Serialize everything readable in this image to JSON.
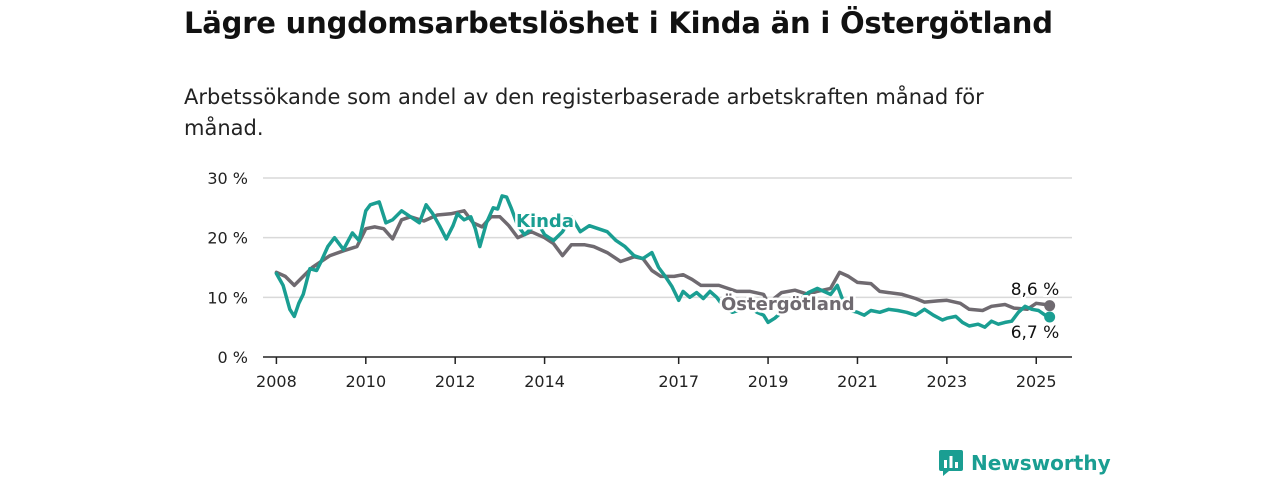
{
  "title": "Lägre ungdomsarbetslöshet i Kinda än i Östergötland",
  "subtitle": "Arbetssökande som andel av den registerbaserade arbetskraften månad för månad.",
  "brand": {
    "name": "Newsworthy",
    "icon": "newsworthy-logo-icon"
  },
  "colors": {
    "kinda": "#1a9e92",
    "ostergotland": "#6f6a70",
    "grid": "#d9d9d9",
    "axis": "#222222"
  },
  "chart_data": {
    "type": "line",
    "x_unit": "year",
    "xlim": [
      2007.7,
      2025.8
    ],
    "ylim": [
      0,
      30
    ],
    "y_ticks": [
      0,
      10,
      20,
      30
    ],
    "y_tick_labels": [
      "0 %",
      "10 %",
      "20 %",
      "30 %"
    ],
    "x_ticks": [
      2008,
      2010,
      2012,
      2014,
      2017,
      2019,
      2021,
      2023,
      2025
    ],
    "x_tick_labels": [
      "2008",
      "2010",
      "2012",
      "2014",
      "2017",
      "2019",
      "2021",
      "2023",
      "2025"
    ],
    "grid": true,
    "series": [
      {
        "name": "Östergötland",
        "end_label": "8,6 %",
        "points": [
          [
            2008.0,
            14.2
          ],
          [
            2008.2,
            13.5
          ],
          [
            2008.4,
            12.0
          ],
          [
            2008.6,
            13.5
          ],
          [
            2008.8,
            15.0
          ],
          [
            2009.0,
            16.0
          ],
          [
            2009.2,
            17.0
          ],
          [
            2009.5,
            17.8
          ],
          [
            2009.8,
            18.5
          ],
          [
            2010.0,
            21.5
          ],
          [
            2010.2,
            21.8
          ],
          [
            2010.4,
            21.5
          ],
          [
            2010.6,
            19.8
          ],
          [
            2010.8,
            23.0
          ],
          [
            2011.0,
            23.5
          ],
          [
            2011.3,
            22.8
          ],
          [
            2011.6,
            23.8
          ],
          [
            2011.9,
            24.0
          ],
          [
            2012.2,
            24.5
          ],
          [
            2012.4,
            22.5
          ],
          [
            2012.6,
            21.8
          ],
          [
            2012.8,
            23.5
          ],
          [
            2013.0,
            23.5
          ],
          [
            2013.2,
            22.0
          ],
          [
            2013.4,
            20.0
          ],
          [
            2013.7,
            21.0
          ],
          [
            2014.0,
            20.0
          ],
          [
            2014.2,
            19.0
          ],
          [
            2014.4,
            17.0
          ],
          [
            2014.6,
            18.8
          ],
          [
            2014.9,
            18.8
          ],
          [
            2015.1,
            18.5
          ],
          [
            2015.4,
            17.5
          ],
          [
            2015.7,
            16.0
          ],
          [
            2016.0,
            16.8
          ],
          [
            2016.2,
            16.5
          ],
          [
            2016.4,
            14.5
          ],
          [
            2016.6,
            13.5
          ],
          [
            2016.9,
            13.5
          ],
          [
            2017.1,
            13.8
          ],
          [
            2017.3,
            13.0
          ],
          [
            2017.5,
            12.0
          ],
          [
            2017.7,
            12.0
          ],
          [
            2017.9,
            12.0
          ],
          [
            2018.1,
            11.5
          ],
          [
            2018.3,
            11.0
          ],
          [
            2018.6,
            11.0
          ],
          [
            2018.9,
            10.5
          ],
          [
            2019.0,
            9.0
          ],
          [
            2019.3,
            10.8
          ],
          [
            2019.6,
            11.2
          ],
          [
            2019.9,
            10.5
          ],
          [
            2020.1,
            11.0
          ],
          [
            2020.4,
            11.5
          ],
          [
            2020.6,
            14.2
          ],
          [
            2020.8,
            13.5
          ],
          [
            2021.0,
            12.5
          ],
          [
            2021.3,
            12.3
          ],
          [
            2021.5,
            11.0
          ],
          [
            2021.7,
            10.8
          ],
          [
            2022.0,
            10.5
          ],
          [
            2022.3,
            9.8
          ],
          [
            2022.5,
            9.2
          ],
          [
            2022.8,
            9.4
          ],
          [
            2023.0,
            9.5
          ],
          [
            2023.3,
            9.0
          ],
          [
            2023.5,
            8.0
          ],
          [
            2023.8,
            7.8
          ],
          [
            2024.0,
            8.5
          ],
          [
            2024.3,
            8.8
          ],
          [
            2024.5,
            8.2
          ],
          [
            2024.8,
            8.0
          ],
          [
            2025.0,
            9.0
          ],
          [
            2025.2,
            8.8
          ],
          [
            2025.3,
            8.6
          ]
        ]
      },
      {
        "name": "Kinda",
        "end_label": "6,7 %",
        "points": [
          [
            2008.0,
            14.0
          ],
          [
            2008.15,
            12.0
          ],
          [
            2008.3,
            8.0
          ],
          [
            2008.4,
            6.8
          ],
          [
            2008.5,
            9.0
          ],
          [
            2008.6,
            10.5
          ],
          [
            2008.75,
            14.8
          ],
          [
            2008.9,
            14.5
          ],
          [
            2009.0,
            16.0
          ],
          [
            2009.15,
            18.5
          ],
          [
            2009.3,
            20.0
          ],
          [
            2009.5,
            18.0
          ],
          [
            2009.7,
            20.8
          ],
          [
            2009.85,
            19.5
          ],
          [
            2010.0,
            24.5
          ],
          [
            2010.1,
            25.5
          ],
          [
            2010.3,
            26.0
          ],
          [
            2010.45,
            22.5
          ],
          [
            2010.6,
            23.0
          ],
          [
            2010.8,
            24.5
          ],
          [
            2011.0,
            23.5
          ],
          [
            2011.2,
            22.5
          ],
          [
            2011.35,
            25.5
          ],
          [
            2011.5,
            24.0
          ],
          [
            2011.65,
            22.0
          ],
          [
            2011.8,
            19.8
          ],
          [
            2011.95,
            22.0
          ],
          [
            2012.05,
            24.0
          ],
          [
            2012.2,
            23.0
          ],
          [
            2012.35,
            23.5
          ],
          [
            2012.45,
            21.5
          ],
          [
            2012.55,
            18.5
          ],
          [
            2012.7,
            22.5
          ],
          [
            2012.85,
            25.0
          ],
          [
            2012.95,
            24.8
          ],
          [
            2013.05,
            27.0
          ],
          [
            2013.15,
            26.8
          ],
          [
            2013.25,
            25.0
          ],
          [
            2013.4,
            22.0
          ],
          [
            2013.55,
            20.5
          ],
          [
            2013.7,
            21.5
          ],
          [
            2013.85,
            22.5
          ],
          [
            2014.0,
            20.5
          ],
          [
            2014.2,
            19.5
          ],
          [
            2014.4,
            21.0
          ],
          [
            2014.6,
            23.5
          ],
          [
            2014.8,
            21.0
          ],
          [
            2015.0,
            22.0
          ],
          [
            2015.2,
            21.5
          ],
          [
            2015.4,
            21.0
          ],
          [
            2015.6,
            19.5
          ],
          [
            2015.8,
            18.5
          ],
          [
            2016.0,
            17.0
          ],
          [
            2016.2,
            16.5
          ],
          [
            2016.4,
            17.5
          ],
          [
            2016.55,
            15.0
          ],
          [
            2016.7,
            13.5
          ],
          [
            2016.85,
            11.8
          ],
          [
            2017.0,
            9.5
          ],
          [
            2017.1,
            11.0
          ],
          [
            2017.25,
            10.0
          ],
          [
            2017.4,
            10.8
          ],
          [
            2017.55,
            9.8
          ],
          [
            2017.7,
            11.0
          ],
          [
            2017.85,
            10.0
          ],
          [
            2018.0,
            8.5
          ],
          [
            2018.2,
            7.5
          ],
          [
            2018.4,
            8.0
          ],
          [
            2018.6,
            8.5
          ],
          [
            2018.75,
            7.5
          ],
          [
            2018.9,
            7.0
          ],
          [
            2019.0,
            5.8
          ],
          [
            2019.15,
            6.5
          ],
          [
            2019.3,
            7.5
          ],
          [
            2019.5,
            8.8
          ],
          [
            2019.7,
            9.5
          ],
          [
            2019.9,
            10.8
          ],
          [
            2020.1,
            11.5
          ],
          [
            2020.25,
            11.0
          ],
          [
            2020.4,
            10.5
          ],
          [
            2020.55,
            12.0
          ],
          [
            2020.7,
            9.0
          ],
          [
            2020.85,
            7.8
          ],
          [
            2021.0,
            7.5
          ],
          [
            2021.15,
            7.0
          ],
          [
            2021.3,
            7.8
          ],
          [
            2021.5,
            7.5
          ],
          [
            2021.7,
            8.0
          ],
          [
            2021.9,
            7.8
          ],
          [
            2022.1,
            7.5
          ],
          [
            2022.3,
            7.0
          ],
          [
            2022.5,
            8.0
          ],
          [
            2022.7,
            7.0
          ],
          [
            2022.9,
            6.2
          ],
          [
            2023.0,
            6.5
          ],
          [
            2023.2,
            6.8
          ],
          [
            2023.35,
            5.8
          ],
          [
            2023.5,
            5.2
          ],
          [
            2023.7,
            5.5
          ],
          [
            2023.85,
            5.0
          ],
          [
            2024.0,
            6.0
          ],
          [
            2024.15,
            5.5
          ],
          [
            2024.3,
            5.8
          ],
          [
            2024.45,
            6.0
          ],
          [
            2024.6,
            7.5
          ],
          [
            2024.75,
            8.5
          ],
          [
            2024.9,
            8.0
          ],
          [
            2025.05,
            7.8
          ],
          [
            2025.2,
            7.0
          ],
          [
            2025.3,
            6.7
          ]
        ]
      }
    ]
  }
}
